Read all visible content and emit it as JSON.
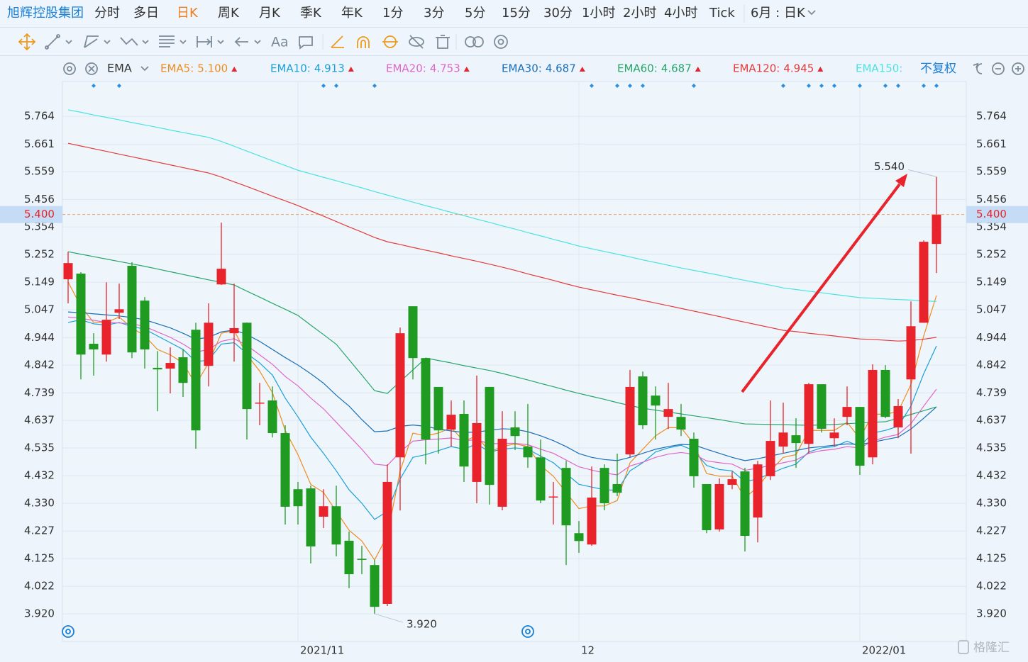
{
  "toolbar": {
    "stock": "旭辉控股集团",
    "periods": [
      "分时",
      "多日",
      "日K",
      "周K",
      "月K",
      "季K",
      "年K",
      "1分",
      "3分",
      "5分",
      "15分",
      "30分",
      "1小时",
      "2小时",
      "4小时",
      "Tick"
    ],
    "period_selector": "6月 : 日K",
    "text_tool": "Aa"
  },
  "indicator": {
    "name": "EMA",
    "adjust": "不复权"
  },
  "watermark": "格隆汇",
  "chart_data": {
    "type": "candlestick",
    "categories": [
      null,
      null,
      null,
      null,
      null,
      null,
      null,
      null,
      null,
      null,
      null,
      null,
      null,
      null,
      null,
      null,
      null,
      null,
      "2021/11",
      null,
      null,
      null,
      null,
      null,
      null,
      null,
      null,
      null,
      null,
      null,
      null,
      null,
      null,
      null,
      null,
      null,
      null,
      null,
      null,
      null,
      "12",
      null,
      null,
      null,
      null,
      null,
      null,
      null,
      null,
      null,
      null,
      null,
      null,
      null,
      null,
      null,
      null,
      null,
      null,
      null,
      null,
      null,
      "2022/01",
      null,
      null,
      null,
      null,
      null,
      null
    ],
    "candles": {
      "up_color": "#e8232b",
      "down_color": "#1f9b22",
      "open": [
        5.16,
        5.181,
        4.921,
        4.881,
        5.036,
        5.21,
        5.081,
        4.832,
        4.829,
        4.871,
        4.973,
        4.839,
        5.141,
        4.96,
        4.999,
        4.7,
        4.711,
        4.59,
        4.382,
        4.385,
        4.28,
        4.319,
        4.191,
        4.124,
        4.101,
        3.957,
        4.5,
        5.06,
        4.868,
        4.761,
        4.603,
        4.661,
        4.409,
        4.761,
        4.317,
        4.611,
        4.54,
        4.5,
        4.353,
        4.461,
        4.219,
        4.177,
        4.461,
        4.401,
        4.511,
        4.8,
        4.729,
        4.65,
        4.65,
        4.569,
        4.401,
        4.233,
        4.398,
        4.448,
        4.277,
        4.43,
        4.54,
        4.582,
        4.55,
        4.771,
        4.571,
        4.65,
        4.687,
        4.5,
        4.824,
        4.611,
        4.789,
        4.999,
        5.291
      ],
      "high": [
        5.262,
        5.186,
        4.96,
        5.149,
        5.144,
        5.223,
        5.094,
        4.894,
        4.908,
        4.902,
        4.999,
        5.071,
        5.37,
        5.144,
        5.0,
        4.776,
        4.763,
        4.619,
        4.409,
        4.395,
        4.382,
        4.395,
        4.225,
        4.172,
        4.12,
        4.474,
        4.981,
        5.06,
        4.868,
        4.761,
        4.711,
        4.711,
        4.803,
        4.761,
        4.671,
        4.671,
        4.698,
        4.566,
        4.409,
        4.487,
        4.264,
        4.466,
        4.474,
        4.514,
        4.824,
        4.818,
        4.763,
        4.776,
        4.698,
        4.592,
        4.401,
        4.422,
        4.448,
        4.461,
        4.487,
        4.711,
        4.703,
        4.645,
        4.776,
        4.771,
        4.645,
        4.763,
        4.687,
        4.845,
        4.842,
        4.716,
        5.078,
        5.304,
        5.54
      ],
      "low": [
        5.071,
        4.789,
        4.803,
        4.855,
        5.013,
        4.868,
        4.829,
        4.671,
        4.737,
        4.724,
        4.532,
        4.763,
        5.139,
        4.855,
        4.566,
        4.619,
        4.574,
        4.251,
        4.251,
        4.107,
        4.238,
        4.133,
        4.015,
        4.067,
        3.92,
        3.949,
        4.303,
        4.789,
        4.474,
        4.514,
        4.54,
        4.409,
        4.33,
        4.325,
        4.304,
        4.527,
        4.461,
        4.33,
        4.251,
        4.101,
        4.146,
        4.172,
        4.304,
        4.356,
        4.501,
        4.605,
        4.566,
        4.605,
        4.579,
        4.388,
        4.219,
        4.225,
        4.382,
        4.151,
        4.185,
        4.416,
        4.514,
        4.461,
        4.514,
        4.592,
        4.54,
        4.619,
        4.435,
        4.474,
        4.645,
        4.571,
        4.514,
        4.999,
        5.183
      ],
      "close": [
        5.22,
        4.881,
        4.9,
        5.01,
        5.049,
        4.889,
        4.9,
        4.826,
        4.85,
        4.776,
        4.6,
        4.999,
        5.199,
        4.979,
        4.679,
        4.703,
        4.59,
        4.317,
        4.319,
        4.17,
        4.319,
        4.177,
        4.067,
        4.12,
        3.946,
        4.409,
        4.96,
        4.868,
        4.566,
        4.6,
        4.658,
        4.466,
        4.627,
        4.398,
        4.569,
        4.579,
        4.5,
        4.34,
        4.355,
        4.248,
        4.19,
        4.351,
        4.33,
        4.369,
        4.761,
        4.619,
        4.692,
        4.679,
        4.603,
        4.43,
        4.23,
        4.401,
        4.419,
        4.209,
        4.474,
        4.561,
        4.592,
        4.553,
        4.771,
        4.606,
        4.592,
        4.687,
        4.469,
        4.824,
        4.65,
        4.69,
        4.986,
        5.299,
        5.4
      ]
    },
    "series": [
      {
        "name": "EMA5:",
        "color": "#f08c1e",
        "latest": 5.1,
        "latest_label": "5.100",
        "values": [
          5.15,
          5.06,
          5.0,
          5.0,
          5.02,
          4.98,
          4.95,
          4.9,
          4.88,
          4.85,
          4.77,
          4.85,
          4.96,
          4.97,
          4.88,
          4.82,
          4.74,
          4.6,
          4.51,
          4.4,
          4.37,
          4.3,
          4.23,
          4.19,
          4.12,
          4.21,
          4.45,
          4.59,
          4.58,
          4.59,
          4.61,
          4.56,
          4.58,
          4.52,
          4.54,
          4.55,
          4.54,
          4.47,
          4.43,
          4.37,
          4.31,
          4.32,
          4.32,
          4.34,
          4.48,
          4.53,
          4.58,
          4.61,
          4.61,
          4.55,
          4.44,
          4.43,
          4.43,
          4.35,
          4.39,
          4.45,
          4.5,
          4.51,
          4.6,
          4.6,
          4.6,
          4.63,
          4.57,
          4.66,
          4.66,
          4.67,
          4.77,
          4.95,
          5.1
        ]
      },
      {
        "name": "EMA10:",
        "color": "#1ba1d8",
        "latest": 4.913,
        "values": [
          5.0,
          5.01,
          4.995,
          4.99,
          5.0,
          4.985,
          4.975,
          4.95,
          4.925,
          4.9,
          4.855,
          4.86,
          4.92,
          4.925,
          4.885,
          4.85,
          4.805,
          4.72,
          4.65,
          4.575,
          4.515,
          4.45,
          4.38,
          4.33,
          4.27,
          4.3,
          4.42,
          4.5,
          4.51,
          4.525,
          4.54,
          4.53,
          4.55,
          4.52,
          4.53,
          4.535,
          4.53,
          4.505,
          4.48,
          4.44,
          4.4,
          4.39,
          4.38,
          4.378,
          4.45,
          4.48,
          4.52,
          4.535,
          4.545,
          4.525,
          4.47,
          4.455,
          4.45,
          4.41,
          4.42,
          4.44,
          4.46,
          4.475,
          4.52,
          4.535,
          4.54,
          4.56,
          4.54,
          4.59,
          4.6,
          4.615,
          4.69,
          4.81,
          4.913
        ]
      },
      {
        "name": "EMA20:",
        "color": "#e066c8",
        "latest": 4.753,
        "values": [
          5.02,
          5.015,
          5.008,
          5.0,
          4.998,
          4.995,
          4.985,
          4.965,
          4.945,
          4.92,
          4.89,
          4.9,
          4.93,
          4.94,
          4.915,
          4.88,
          4.845,
          4.8,
          4.765,
          4.72,
          4.68,
          4.63,
          4.58,
          4.53,
          4.475,
          4.47,
          4.52,
          4.56,
          4.565,
          4.568,
          4.572,
          4.562,
          4.565,
          4.55,
          4.552,
          4.552,
          4.547,
          4.53,
          4.515,
          4.49,
          4.465,
          4.453,
          4.442,
          4.435,
          4.468,
          4.482,
          4.5,
          4.512,
          4.518,
          4.512,
          4.487,
          4.48,
          4.475,
          4.452,
          4.46,
          4.47,
          4.48,
          4.49,
          4.515,
          4.525,
          4.53,
          4.54,
          4.535,
          4.56,
          4.575,
          4.585,
          4.625,
          4.69,
          4.753
        ]
      },
      {
        "name": "EMA30:",
        "color": "#1a6fb8",
        "latest": 4.687,
        "values": [
          5.039,
          5.036,
          5.032,
          5.028,
          5.024,
          5.018,
          5.01,
          4.995,
          4.98,
          4.96,
          4.938,
          4.945,
          4.965,
          4.972,
          4.955,
          4.93,
          4.9,
          4.87,
          4.842,
          4.81,
          4.775,
          4.73,
          4.69,
          4.64,
          4.595,
          4.598,
          4.615,
          4.62,
          4.615,
          4.605,
          4.598,
          4.592,
          4.594,
          4.6,
          4.606,
          4.604,
          4.595,
          4.58,
          4.562,
          4.54,
          4.514,
          4.5,
          4.492,
          4.488,
          4.5,
          4.515,
          4.53,
          4.54,
          4.548,
          4.546,
          4.53,
          4.515,
          4.5,
          4.488,
          4.495,
          4.505,
          4.515,
          4.525,
          4.535,
          4.54,
          4.545,
          4.55,
          4.548,
          4.556,
          4.566,
          4.575,
          4.605,
          4.645,
          4.687
        ]
      },
      {
        "name": "EMA60:",
        "color": "#27a66a",
        "latest": 4.687,
        "values": [
          5.262,
          5.253,
          5.244,
          5.235,
          5.226,
          5.217,
          5.208,
          5.198,
          5.188,
          5.178,
          5.168,
          5.158,
          5.149,
          5.139,
          5.116,
          5.094,
          5.071,
          5.049,
          5.026,
          4.99,
          4.955,
          4.919,
          4.862,
          4.805,
          4.747,
          4.737,
          4.781,
          4.824,
          4.868,
          4.859,
          4.85,
          4.84,
          4.831,
          4.822,
          4.811,
          4.799,
          4.787,
          4.774,
          4.762,
          4.749,
          4.737,
          4.726,
          4.715,
          4.703,
          4.692,
          4.682,
          4.675,
          4.668,
          4.661,
          4.654,
          4.647,
          4.64,
          4.632,
          4.624,
          4.623,
          4.622,
          4.621,
          4.62,
          4.619,
          4.62,
          4.622,
          4.625,
          4.627,
          4.63,
          4.632,
          4.645,
          4.659,
          4.673,
          4.687
        ]
      },
      {
        "name": "EMA120:",
        "color": "#e53b3b",
        "latest": 4.945,
        "values": [
          5.664,
          5.654,
          5.644,
          5.634,
          5.624,
          5.614,
          5.604,
          5.594,
          5.584,
          5.574,
          5.564,
          5.554,
          5.539,
          5.521,
          5.504,
          5.486,
          5.468,
          5.451,
          5.433,
          5.413,
          5.394,
          5.374,
          5.354,
          5.335,
          5.315,
          5.299,
          5.289,
          5.278,
          5.268,
          5.258,
          5.247,
          5.237,
          5.227,
          5.216,
          5.205,
          5.193,
          5.18,
          5.168,
          5.156,
          5.143,
          5.131,
          5.121,
          5.111,
          5.101,
          5.092,
          5.082,
          5.072,
          5.062,
          5.052,
          5.042,
          5.032,
          5.022,
          5.011,
          5.001,
          4.991,
          4.981,
          4.971,
          4.966,
          4.96,
          4.955,
          4.95,
          4.944,
          4.939,
          4.937,
          4.934,
          4.931,
          4.933,
          4.938,
          4.945
        ]
      },
      {
        "name": "EMA150:",
        "color": "#4de3e0",
        "values": [
          5.788,
          5.779,
          5.769,
          5.76,
          5.751,
          5.741,
          5.732,
          5.723,
          5.713,
          5.704,
          5.695,
          5.686,
          5.671,
          5.653,
          5.635,
          5.617,
          5.599,
          5.582,
          5.564,
          5.551,
          5.538,
          5.525,
          5.512,
          5.499,
          5.485,
          5.472,
          5.459,
          5.446,
          5.433,
          5.421,
          5.408,
          5.396,
          5.383,
          5.371,
          5.358,
          5.346,
          5.333,
          5.321,
          5.308,
          5.296,
          5.283,
          5.273,
          5.263,
          5.253,
          5.243,
          5.232,
          5.222,
          5.212,
          5.202,
          5.193,
          5.184,
          5.175,
          5.165,
          5.156,
          5.147,
          5.138,
          5.128,
          5.122,
          5.116,
          5.11,
          5.104,
          5.098,
          5.092,
          5.09,
          5.087,
          5.085,
          5.083,
          5.08,
          5.078
        ]
      }
    ],
    "ylim": [
      3.823,
      5.893
    ],
    "yticks": [
      {
        "value": 3.92,
        "label": "3.920"
      },
      4.022,
      4.125,
      4.227,
      {
        "value": 4.33,
        "label": "4.330"
      },
      4.432,
      4.535,
      4.637,
      4.739,
      4.842,
      4.944,
      5.047,
      5.149,
      5.252,
      5.354,
      5.456,
      5.559,
      5.661,
      5.764
    ],
    "grid": true,
    "price_line": {
      "value": 5.4,
      "label": "5.400",
      "color": "#e8232b"
    },
    "high_label": {
      "value": 5.54,
      "label": "5.540"
    },
    "low_label": {
      "value": 3.92,
      "label": "3.920"
    }
  }
}
